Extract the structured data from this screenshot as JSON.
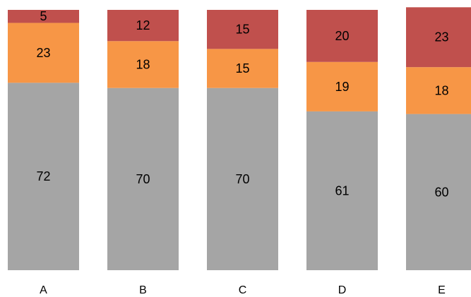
{
  "chart_data": {
    "type": "bar",
    "stacked": true,
    "normalized_to": 100,
    "categories": [
      "A",
      "B",
      "C",
      "D",
      "E"
    ],
    "series": [
      {
        "values": [
          72,
          70,
          70,
          61,
          60
        ],
        "color": "#a5a5a5"
      },
      {
        "values": [
          23,
          18,
          15,
          19,
          18
        ],
        "color": "#f79646"
      },
      {
        "values": [
          5,
          12,
          15,
          20,
          23
        ],
        "color": "#c0504d"
      }
    ],
    "title": "",
    "xlabel": "",
    "ylabel": "",
    "ylim": [
      0,
      100
    ],
    "grid": false,
    "legend": "none"
  }
}
